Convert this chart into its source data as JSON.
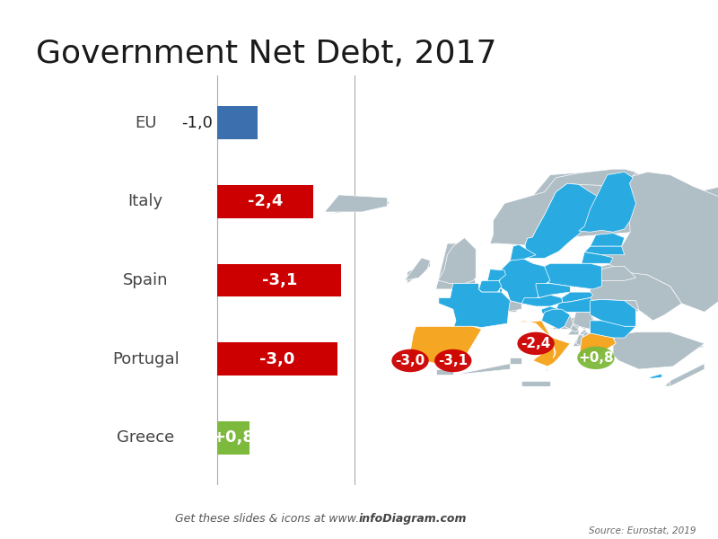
{
  "title": "Government Net Debt, 2017",
  "source_text": "Source: Eurostat, 2019",
  "footer_text": "Get these slides & icons at www.infoDiagram.com",
  "footer_bold": "infoDiagram.com",
  "countries": [
    "EU",
    "Italy",
    "Spain",
    "Portugal",
    "Greece"
  ],
  "values": [
    -1.0,
    -2.4,
    -3.1,
    -3.0,
    0.8
  ],
  "labels": [
    "-1,0",
    "-2,4",
    "-3,1",
    "-3,0",
    "+0,8"
  ],
  "bar_colors": [
    "#3B6FAD",
    "#CC0000",
    "#CC0000",
    "#CC0000",
    "#7DB93C"
  ],
  "teal_accent": "#009688",
  "background_color": "#ffffff",
  "map_blue": "#29ABE2",
  "map_orange": "#F5A623",
  "map_gray": "#B0BEC5",
  "bubble_colors": [
    "#CC0000",
    "#CC0000",
    "#CC0000",
    "#7DB93C"
  ],
  "bubble_labels": [
    "-3,0",
    "-3,1",
    "-2,4",
    "+0,8"
  ],
  "title_fontsize": 26,
  "label_fontsize": 13,
  "country_fontsize": 13
}
